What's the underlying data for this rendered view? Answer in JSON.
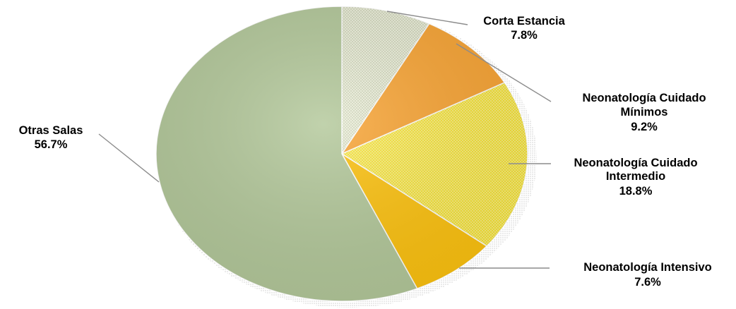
{
  "chart_data": {
    "type": "pie",
    "title": "",
    "slices": [
      {
        "name": "Corta Estancia",
        "name_lines": [
          "Corta Estancia"
        ],
        "value": 7.8,
        "label": "7.8%",
        "color": "#eef1dd",
        "pattern": "dots-light"
      },
      {
        "name": "Neonatología Cuidado Mínimos",
        "name_lines": [
          "Neonatología Cuidado",
          "Mínimos"
        ],
        "value": 9.2,
        "label": "9.2%",
        "color": "#f9a535",
        "pattern": "none"
      },
      {
        "name": "Neonatología Cuidado Intermedio",
        "name_lines": [
          "Neonatología Cuidado",
          "Intermedio"
        ],
        "value": 18.8,
        "label": "18.8%",
        "color": "#f7e435",
        "pattern": "dots-dense"
      },
      {
        "name": "Neonatología Intensivo",
        "name_lines": [
          "Neonatología Intensivo"
        ],
        "value": 7.6,
        "label": "7.6%",
        "color": "#fdc20f",
        "pattern": "none"
      },
      {
        "name": "Otras Salas",
        "name_lines": [
          "Otras Salas"
        ],
        "value": 56.7,
        "label": "56.7%",
        "color": "#b3c89a",
        "pattern": "none"
      }
    ],
    "start": "top",
    "direction": "clockwise",
    "legend": "none",
    "data_labels": "outside-with-leader-lines"
  }
}
